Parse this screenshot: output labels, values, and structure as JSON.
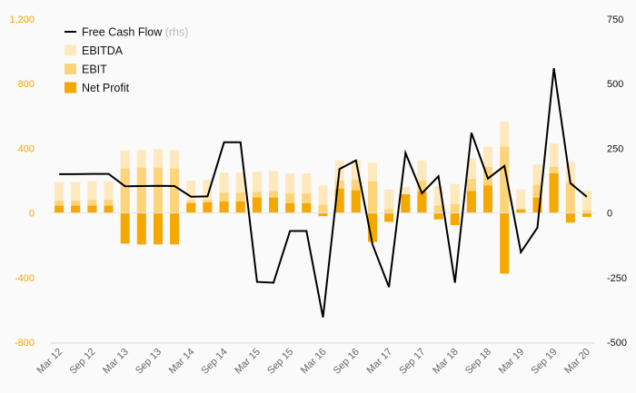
{
  "chart_data": {
    "type": "bar",
    "title": "",
    "xlabel": "",
    "ylabel": "",
    "categories": [
      "Mar 12",
      "Jun 12",
      "Sep 12",
      "Dec 12",
      "Mar 13",
      "Jun 13",
      "Sep 13",
      "Dec 13",
      "Mar 14",
      "Jun 14",
      "Sep 14",
      "Dec 14",
      "Mar 15",
      "Jun 15",
      "Sep 15",
      "Dec 15",
      "Mar 16",
      "Jun 16",
      "Sep 16",
      "Dec 16",
      "Mar 17",
      "Jun 17",
      "Sep 17",
      "Dec 17",
      "Mar 18",
      "Jun 18",
      "Sep 18",
      "Dec 18",
      "Mar 19",
      "Jun 19",
      "Sep 19",
      "Dec 19",
      "Mar 20"
    ],
    "x_tick_labels": [
      "Mar 12",
      "Sep 12",
      "Mar 13",
      "Sep 13",
      "Mar 14",
      "Sep 14",
      "Mar 15",
      "Sep 15",
      "Mar 16",
      "Sep 16",
      "Mar 17",
      "Sep 17",
      "Mar 18",
      "Sep 18",
      "Mar 19",
      "Sep 19",
      "Mar 20"
    ],
    "y_left": {
      "ticks": [
        "-800",
        "-400",
        "0",
        "400",
        "800",
        "1,200"
      ],
      "lim": [
        -800,
        1200
      ]
    },
    "y_right": {
      "ticks": [
        "-500",
        "-250",
        "0",
        "250",
        "500",
        "750"
      ],
      "lim": [
        -500,
        750
      ]
    },
    "legend": {
      "placement": "top-left",
      "entries": [
        {
          "name": "Free Cash Flow",
          "suffix": "(rhs)",
          "kind": "line"
        },
        {
          "name": "EBITDA",
          "kind": "bar"
        },
        {
          "name": "EBIT",
          "kind": "bar"
        },
        {
          "name": "Net Profit",
          "kind": "bar"
        }
      ]
    },
    "colors": {
      "ebitda": "#fde9bd",
      "ebit": "#fdd47c",
      "net_profit": "#f5a800",
      "fcf": "#000000",
      "left_axis": "#f0a800",
      "right_axis": "#111111"
    },
    "series": [
      {
        "name": "EBITDA",
        "axis": "left",
        "values": [
          190,
          190,
          195,
          195,
          385,
          390,
          395,
          390,
          200,
          205,
          250,
          250,
          255,
          260,
          245,
          245,
          170,
          325,
          330,
          310,
          145,
          160,
          325,
          165,
          180,
          340,
          410,
          565,
          145,
          300,
          430,
          315,
          140
        ]
      },
      {
        "name": "EBIT",
        "axis": "left",
        "values": [
          75,
          75,
          80,
          80,
          275,
          280,
          280,
          275,
          75,
          80,
          125,
          125,
          130,
          135,
          120,
          120,
          50,
          200,
          205,
          195,
          25,
          35,
          200,
          45,
          55,
          210,
          285,
          410,
          25,
          175,
          285,
          185,
          15
        ]
      },
      {
        "name": "Net Profit",
        "axis": "left",
        "values": [
          45,
          45,
          45,
          45,
          -190,
          -195,
          -195,
          -195,
          60,
          65,
          70,
          70,
          95,
          95,
          60,
          60,
          -20,
          150,
          140,
          -180,
          -55,
          115,
          130,
          -40,
          -75,
          135,
          170,
          -375,
          20,
          95,
          245,
          -60,
          -25
        ]
      },
      {
        "name": "Free Cash Flow",
        "axis": "right",
        "type": "line",
        "values": [
          150,
          150,
          151,
          151,
          103,
          104,
          105,
          104,
          63,
          64,
          273,
          273,
          -267,
          -270,
          -70,
          -70,
          -404,
          170,
          203,
          -122,
          -287,
          232,
          76,
          142,
          -270,
          310,
          133,
          182,
          -152,
          -57,
          560,
          115,
          62
        ]
      }
    ]
  }
}
